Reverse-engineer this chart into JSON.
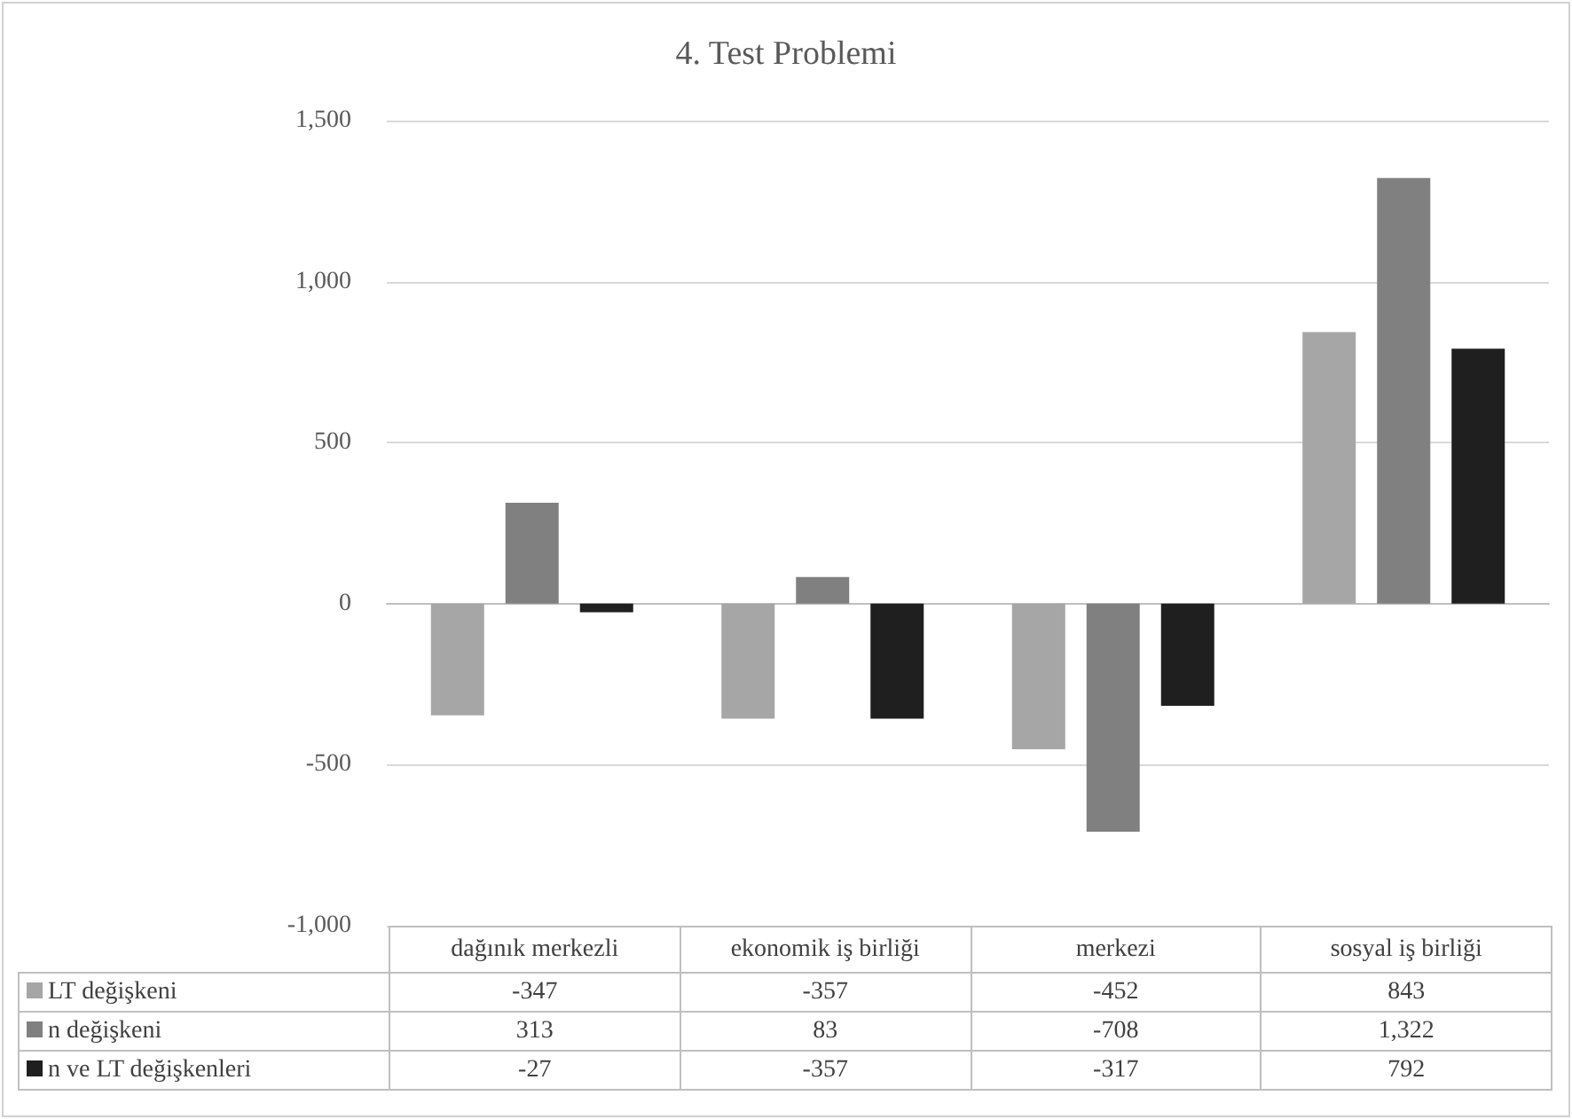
{
  "chart_data": {
    "type": "bar",
    "title": "4. Test Problemi",
    "categories": [
      "dağınık merkezli",
      "ekonomik iş birliği",
      "merkezi",
      "sosyal iş birliği"
    ],
    "series": [
      {
        "name": "LT değişkeni",
        "color": "#a6a6a6",
        "values": [
          -347,
          -357,
          -452,
          843
        ],
        "value_labels": [
          "-347",
          "-357",
          "-452",
          "843"
        ]
      },
      {
        "name": "n değişkeni",
        "color": "#808080",
        "values": [
          313,
          83,
          -708,
          1322
        ],
        "value_labels": [
          "313",
          "83",
          "-708",
          "1,322"
        ]
      },
      {
        "name": "n ve LT değişkenleri",
        "color": "#1f1f1f",
        "values": [
          -27,
          -357,
          -317,
          792
        ],
        "value_labels": [
          "-27",
          "-357",
          "-317",
          "792"
        ]
      }
    ],
    "ylim": [
      -1000,
      1500
    ],
    "yticks": [
      {
        "value": -1000,
        "label": "-1,000"
      },
      -500,
      0,
      500,
      {
        "value": 1000,
        "label": "1,000"
      },
      {
        "value": 1500,
        "label": "1,500"
      }
    ],
    "grid": "y",
    "legend": "bottom"
  }
}
